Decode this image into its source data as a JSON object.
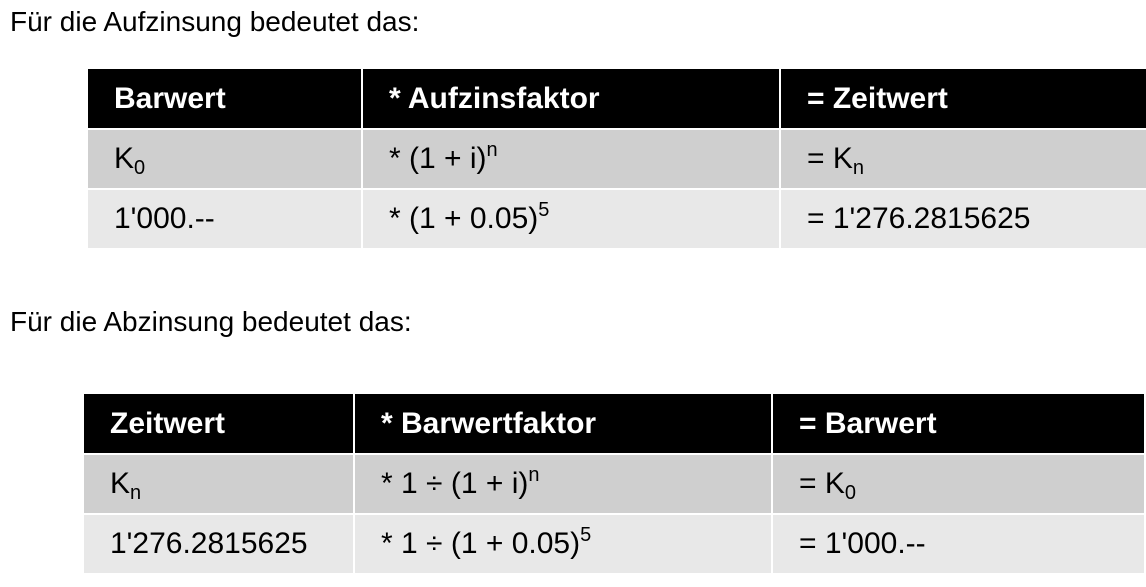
{
  "aufzinsung": {
    "intro": "Für die Aufzinsung bedeutet das:",
    "headers": [
      "Barwert",
      "* Aufzinsfaktor",
      "= Zeitwert"
    ],
    "formula_row": {
      "c1_base": "K",
      "c1_sub": "0",
      "c2_base": "* (1 + i)",
      "c2_sup": "n",
      "c3_base": "= K",
      "c3_sub": "n"
    },
    "example_row": {
      "c1": "1'000.--",
      "c2_base": "* (1 + 0.05)",
      "c2_sup": "5",
      "c3": "= 1'276.2815625"
    }
  },
  "abzinsung": {
    "intro": "Für die Abzinsung bedeutet das:",
    "headers": [
      "Zeitwert",
      "* Barwertfaktor",
      "= Barwert"
    ],
    "formula_row": {
      "c1_base": "K",
      "c1_sub": "n",
      "c2_base": "* 1 ÷ (1 + i)",
      "c2_sup": "n",
      "c3_base": "= K",
      "c3_sub": "0"
    },
    "example_row": {
      "c1": "1'276.2815625",
      "c2_base": "* 1 ÷ (1 + 0.05)",
      "c2_sup": "5",
      "c3": "= 1'000.--"
    }
  }
}
